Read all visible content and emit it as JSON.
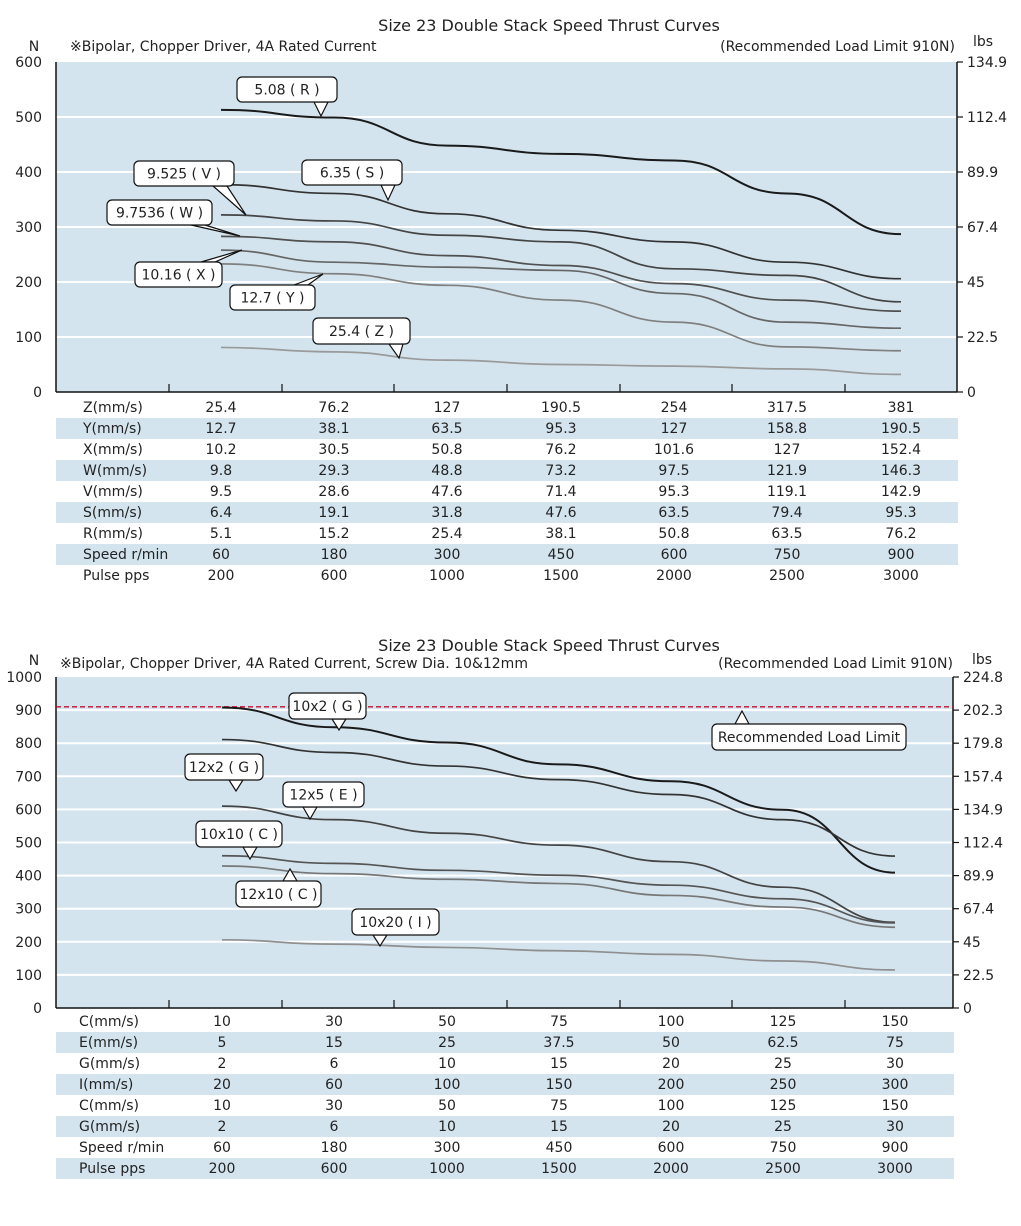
{
  "chart_data": [
    {
      "type": "line",
      "title": "Size 23 Double Stack Speed Thrust Curves",
      "left_unit": "N",
      "note": "※Bipolar, Chopper Driver, 4A Rated Current",
      "load_limit_note": "(Recommended Load Limit 910N)",
      "right_unit": "lbs",
      "ylim": [
        0,
        600
      ],
      "yticks": [
        "0",
        "100",
        "200",
        "300",
        "400",
        "500",
        "600"
      ],
      "right_ticks": [
        "0",
        "22.5",
        "45",
        "67.4",
        "89.9",
        "112.4",
        "134.9"
      ],
      "x_key": "Speed r/min",
      "grid": true,
      "colors": {
        "plot_bg": "#d3e4ee",
        "stripe": "#d3e4ee",
        "limit": "#c8102e"
      },
      "series": [
        {
          "name": "5.08 ( R )",
          "color": "#1a1a1a",
          "values": [
            513,
            499,
            448,
            433,
            421,
            361,
            287
          ]
        },
        {
          "name": "6.35 ( S )",
          "color": "#333333",
          "values": [
            377,
            361,
            324,
            294,
            273,
            236,
            206
          ]
        },
        {
          "name": "9.525 ( V )",
          "color": "#444444",
          "values": [
            322,
            311,
            285,
            273,
            224,
            212,
            164
          ]
        },
        {
          "name": "9.7536 ( W )",
          "color": "#505050",
          "values": [
            283,
            273,
            248,
            230,
            197,
            167,
            147
          ]
        },
        {
          "name": "10.16 ( X )",
          "color": "#666666",
          "values": [
            258,
            236,
            227,
            221,
            179,
            127,
            116
          ]
        },
        {
          "name": "12.7 ( Y )",
          "color": "#808080",
          "values": [
            233,
            215,
            194,
            167,
            127,
            82,
            75
          ]
        },
        {
          "name": "25.4 ( Z )",
          "color": "#9a9a9a",
          "values": [
            81,
            73,
            58,
            50,
            47,
            42,
            32
          ]
        }
      ],
      "table": [
        {
          "label": "Z(mm/s)",
          "values": [
            "25.4",
            "76.2",
            "127",
            "190.5",
            "254",
            "317.5",
            "381"
          ]
        },
        {
          "label": "Y(mm/s)",
          "values": [
            "12.7",
            "38.1",
            "63.5",
            "95.3",
            "127",
            "158.8",
            "190.5"
          ]
        },
        {
          "label": "X(mm/s)",
          "values": [
            "10.2",
            "30.5",
            "50.8",
            "76.2",
            "101.6",
            "127",
            "152.4"
          ]
        },
        {
          "label": "W(mm/s)",
          "values": [
            "9.8",
            "29.3",
            "48.8",
            "73.2",
            "97.5",
            "121.9",
            "146.3"
          ]
        },
        {
          "label": "V(mm/s)",
          "values": [
            "9.5",
            "28.6",
            "47.6",
            "71.4",
            "95.3",
            "119.1",
            "142.9"
          ]
        },
        {
          "label": "S(mm/s)",
          "values": [
            "6.4",
            "19.1",
            "31.8",
            "47.6",
            "63.5",
            "79.4",
            "95.3"
          ]
        },
        {
          "label": "R(mm/s)",
          "values": [
            "5.1",
            "15.2",
            "25.4",
            "38.1",
            "50.8",
            "63.5",
            "76.2"
          ]
        },
        {
          "label": "Speed r/min",
          "values": [
            "60",
            "180",
            "300",
            "450",
            "600",
            "750",
            "900"
          ]
        },
        {
          "label": "Pulse  pps",
          "values": [
            "200",
            "600",
            "1000",
            "1500",
            "2000",
            "2500",
            "3000"
          ]
        }
      ]
    },
    {
      "type": "line",
      "title": "Size 23 Double Stack Speed Thrust Curves",
      "left_unit": "N",
      "note": "※Bipolar, Chopper Driver, 4A Rated Current, Screw Dia. 10&12mm",
      "load_limit_note": "(Recommended Load Limit 910N)",
      "right_unit": "lbs",
      "ylim": [
        0,
        1000
      ],
      "yticks": [
        "0",
        "100",
        "200",
        "300",
        "400",
        "500",
        "600",
        "700",
        "800",
        "900",
        "1000"
      ],
      "right_ticks": [
        "0",
        "22.5",
        "45",
        "67.4",
        "89.9",
        "112.4",
        "134.9",
        "157.4",
        "179.8",
        "202.3",
        "224.8"
      ],
      "x_key": "Speed r/min",
      "grid": true,
      "load_limit": {
        "value": 910,
        "label": "Recommended Load Limit"
      },
      "colors": {
        "plot_bg": "#d3e4ee",
        "stripe": "#d3e4ee",
        "limit": "#c8102e"
      },
      "series": [
        {
          "name": "10x2 ( G )",
          "color": "#1a1a1a",
          "values": [
            908,
            848,
            802,
            736,
            685,
            599,
            409
          ]
        },
        {
          "name": "12x2 ( G )",
          "color": "#333333",
          "values": [
            811,
            772,
            731,
            690,
            645,
            569,
            459
          ]
        },
        {
          "name": "12x5 ( E )",
          "color": "#444444",
          "values": [
            610,
            569,
            528,
            492,
            442,
            365,
            259
          ]
        },
        {
          "name": "10x10 ( C )",
          "color": "#555555",
          "values": [
            460,
            437,
            416,
            401,
            371,
            330,
            257
          ]
        },
        {
          "name": "12x10 ( C )",
          "color": "#777777",
          "values": [
            429,
            406,
            389,
            376,
            340,
            305,
            244
          ]
        },
        {
          "name": "10x20 ( I )",
          "color": "#8f8f8f",
          "values": [
            206,
            193,
            183,
            173,
            162,
            142,
            115
          ]
        }
      ],
      "table": [
        {
          "label": "C(mm/s)",
          "values": [
            "10",
            "30",
            "50",
            "75",
            "100",
            "125",
            "150"
          ]
        },
        {
          "label": "E(mm/s)",
          "values": [
            "5",
            "15",
            "25",
            "37.5",
            "50",
            "62.5",
            "75"
          ]
        },
        {
          "label": "G(mm/s)",
          "values": [
            "2",
            "6",
            "10",
            "15",
            "20",
            "25",
            "30"
          ]
        },
        {
          "label": "I(mm/s)",
          "values": [
            "20",
            "60",
            "100",
            "150",
            "200",
            "250",
            "300"
          ]
        },
        {
          "label": "C(mm/s)",
          "values": [
            "10",
            "30",
            "50",
            "75",
            "100",
            "125",
            "150"
          ]
        },
        {
          "label": "G(mm/s)",
          "values": [
            "2",
            "6",
            "10",
            "15",
            "20",
            "25",
            "30"
          ]
        },
        {
          "label": "Speed r/min",
          "values": [
            "60",
            "180",
            "300",
            "450",
            "600",
            "750",
            "900"
          ]
        },
        {
          "label": "Pulse  pps",
          "values": [
            "200",
            "600",
            "1000",
            "1500",
            "2000",
            "2500",
            "3000"
          ]
        }
      ]
    }
  ]
}
